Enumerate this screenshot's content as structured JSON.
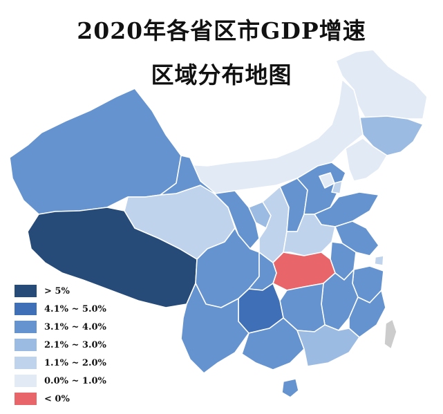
{
  "title": {
    "line1": "2020年各省区市GDP增速",
    "line2": "区域分布地图"
  },
  "legend": {
    "items": [
      {
        "label": "> 5%",
        "color": "#274b78"
      },
      {
        "label": "4.1% ~ 5.0%",
        "color": "#3e6fb7"
      },
      {
        "label": "3.1% ~ 4.0%",
        "color": "#6493d0"
      },
      {
        "label": "2.1% ~ 3.0%",
        "color": "#9cbbe2"
      },
      {
        "label": "1.1% ~ 2.0%",
        "color": "#bfd3ec"
      },
      {
        "label": "0.0% ~ 1.0%",
        "color": "#e2eaf5"
      },
      {
        "label": "< 0%",
        "color": "#e8666a"
      }
    ]
  },
  "no_data_color": "#cccccc"
}
